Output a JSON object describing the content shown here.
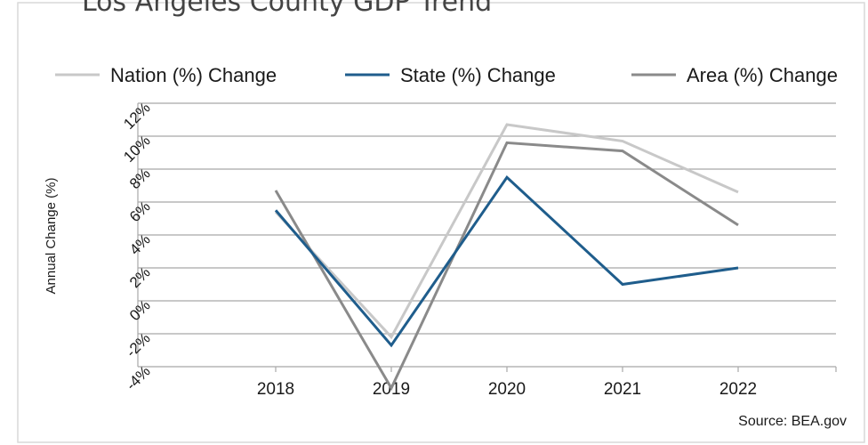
{
  "chart_data": {
    "type": "line",
    "title": "Los Angeles County  GDP Trend",
    "ylabel": "Annual Change (%)",
    "xlabel": "",
    "source": "Source: BEA.gov",
    "categories": [
      "2018",
      "2019",
      "2020",
      "2021",
      "2022"
    ],
    "y_ticks": [
      "-4%",
      "-2%",
      "0%",
      "2%",
      "4%",
      "6%",
      "8%",
      "10%",
      "12%"
    ],
    "ylim": [
      -4,
      12
    ],
    "grid": true,
    "legend_position": "top",
    "series": [
      {
        "name": "Nation (%) Change",
        "color": "#c8c8c8",
        "values": [
          5.4,
          -2.2,
          10.7,
          9.7,
          6.6
        ]
      },
      {
        "name": "State (%) Change",
        "color": "#1f5d8c",
        "values": [
          5.5,
          -2.7,
          7.5,
          1.0,
          2.0
        ]
      },
      {
        "name": "Area (%) Change",
        "color": "#8a8a8a",
        "values": [
          6.7,
          -5.3,
          9.6,
          9.1,
          4.6
        ]
      }
    ]
  }
}
